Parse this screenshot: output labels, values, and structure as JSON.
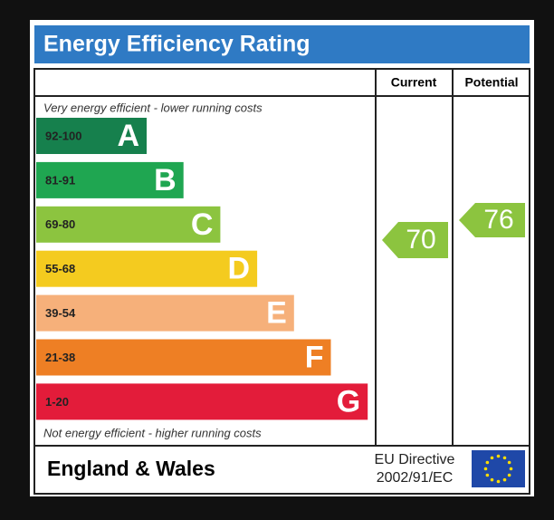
{
  "title": "Energy Efficiency Rating",
  "columns": [
    "Current",
    "Potential"
  ],
  "top_note": "Very energy efficient - lower running costs",
  "bottom_note": "Not energy efficient - higher running costs",
  "bands": [
    {
      "range": "92-100",
      "letter": "A",
      "color": "#16804d"
    },
    {
      "range": "81-91",
      "letter": "B",
      "color": "#1fa651"
    },
    {
      "range": "69-80",
      "letter": "C",
      "color": "#8cc43f"
    },
    {
      "range": "55-68",
      "letter": "D",
      "color": "#f4cb1f"
    },
    {
      "range": "39-54",
      "letter": "E",
      "color": "#f6b07a"
    },
    {
      "range": "21-38",
      "letter": "F",
      "color": "#ee7f24"
    },
    {
      "range": "1-20",
      "letter": "G",
      "color": "#e31c3a"
    }
  ],
  "current": 70,
  "current_color": "#8cc43f",
  "potential": 76,
  "potential_color": "#8cc43f",
  "footer": {
    "region": "England & Wales",
    "directive": [
      "EU Directive",
      "2002/91/EC"
    ]
  }
}
